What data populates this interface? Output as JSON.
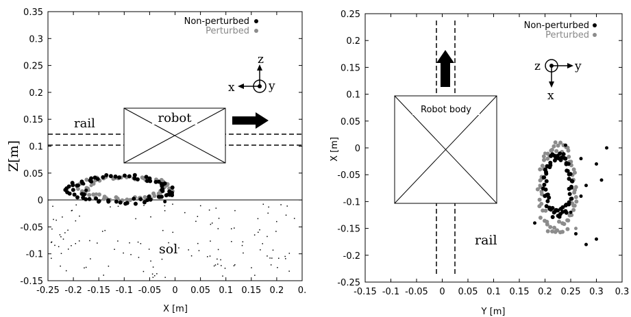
{
  "colors": {
    "non_perturbed": "#000000",
    "perturbed": "#8c8c8c"
  },
  "chart_data": [
    {
      "type": "scatter",
      "xlabel": "X [m]",
      "ylabel": "Z[m]",
      "xlim": [
        -0.25,
        0.25
      ],
      "ylim": [
        -0.15,
        0.35
      ],
      "x_ticks": [
        "-0.25",
        "-0.2",
        "-0.15",
        "-0.1",
        "-0.05",
        "0",
        "0.05",
        "0.1",
        "0.15",
        "0.2",
        "0."
      ],
      "y_ticks": [
        "0.35",
        "0.3",
        "0.25",
        "0.2",
        "0.15",
        "0.1",
        "0.05",
        "0",
        "-0.05",
        "-0.1",
        "-0.15"
      ],
      "legend": [
        "Non-perturbed",
        "Perturbed"
      ],
      "legend_position": "top-right",
      "series": [
        {
          "name": "Non-perturbed",
          "loop": {
            "cx": -0.105,
            "cy": 0.02,
            "rx": 0.095,
            "ry": 0.023
          },
          "extra": [
            [
              -0.19,
              0.027
            ],
            [
              -0.18,
              0.03
            ],
            [
              -0.175,
              0.018
            ],
            [
              -0.03,
              0.005
            ],
            [
              -0.02,
              -0.003
            ],
            [
              -0.015,
              0.01
            ]
          ]
        },
        {
          "name": "Perturbed",
          "loop": {
            "cx": -0.1,
            "cy": 0.022,
            "rx": 0.085,
            "ry": 0.02
          },
          "extra": [
            [
              -0.17,
              0.018
            ],
            [
              -0.165,
              0.027
            ],
            [
              -0.155,
              0.011
            ]
          ]
        }
      ],
      "annotations": {
        "rail": "rail",
        "robot": "robot",
        "ground": "sol",
        "axis_z": "z",
        "axis_x": "x",
        "axis_y": "y"
      }
    },
    {
      "type": "scatter",
      "xlabel": "Y [m]",
      "ylabel": "X [m]",
      "xlim": [
        -0.15,
        0.35
      ],
      "ylim": [
        -0.25,
        0.25
      ],
      "x_ticks": [
        "-0.15",
        "-0.1",
        "-0.05",
        "0",
        "0.05",
        "0.1",
        "0.15",
        "0.2",
        "0.25",
        "0.3",
        "0.3"
      ],
      "y_ticks": [
        "0.25",
        "0.2",
        "0.15",
        "0.1",
        "0.05",
        "0",
        "-0.05",
        "-0.1",
        "-0.15",
        "-0.2",
        "-0.25"
      ],
      "legend": [
        "Non-perturbed",
        "Perturbed"
      ],
      "legend_position": "top-right",
      "series": [
        {
          "name": "Non-perturbed",
          "loop": {
            "cx": 0.225,
            "cy": -0.07,
            "rx": 0.025,
            "ry": 0.055
          },
          "extra": [
            [
              0.27,
              -0.02
            ],
            [
              0.28,
              -0.07
            ],
            [
              0.3,
              -0.03
            ],
            [
              0.32,
              0.0
            ],
            [
              0.26,
              -0.16
            ],
            [
              0.28,
              -0.18
            ],
            [
              0.3,
              -0.17
            ],
            [
              0.27,
              -0.09
            ],
            [
              0.31,
              -0.06
            ],
            [
              0.18,
              -0.14
            ],
            [
              0.25,
              -0.12
            ],
            [
              0.24,
              0.005
            ]
          ]
        },
        {
          "name": "Perturbed",
          "loop": {
            "cx": 0.225,
            "cy": -0.075,
            "rx": 0.035,
            "ry": 0.075
          },
          "extra": [
            [
              0.2,
              -0.01
            ],
            [
              0.19,
              -0.07
            ],
            [
              0.26,
              -0.15
            ],
            [
              0.25,
              -0.03
            ]
          ]
        }
      ],
      "annotations": {
        "rail": "rail",
        "robot": "Robot body",
        "axis_z": "z",
        "axis_x": "x",
        "axis_y": "y"
      }
    }
  ]
}
